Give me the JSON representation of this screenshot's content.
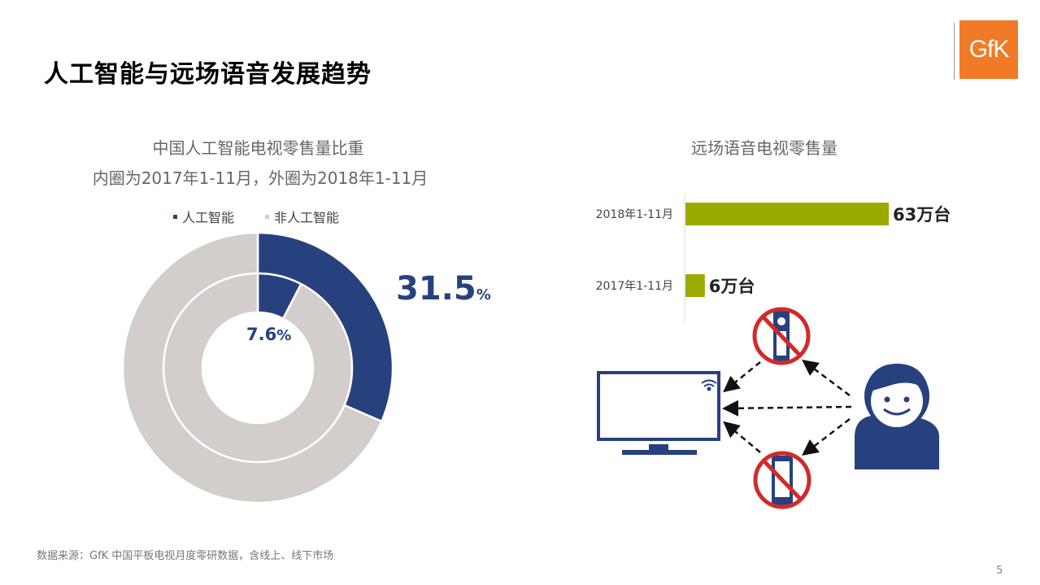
{
  "page": {
    "title": "人工智能与远场语音发展趋势",
    "logo_text": "GfK",
    "source": "数据来源：GfK 中国平板电视月度零研数据，含线上、线下市场",
    "page_number": "5"
  },
  "colors": {
    "ai": "#27417f",
    "non_ai": "#d3cdcb",
    "bar": "#9aab00",
    "logo": "#f07a25",
    "crossout": "#d22a2a"
  },
  "chart_data": [
    {
      "type": "pie",
      "variant": "nested-donut",
      "title": "中国人工智能电视零售量比重",
      "subtitle": "内圈为2017年1-11月，外圈为2018年1-11月",
      "legend": [
        "人工智能",
        "非人工智能"
      ],
      "legend_position": "top",
      "rings": [
        {
          "ring": "inner",
          "values": [
            7.6,
            92.4
          ],
          "label": "7.6",
          "unit": "%"
        },
        {
          "ring": "outer",
          "values": [
            31.5,
            68.5
          ],
          "label": "31.5",
          "unit": "%"
        }
      ]
    },
    {
      "type": "bar",
      "orientation": "horizontal",
      "title": "远场语音电视零售量",
      "categories": [
        "2018年1-11月",
        "2017年1-11月"
      ],
      "values": [
        63,
        6
      ],
      "value_labels": [
        "63万台",
        "6万台"
      ],
      "xlim": [
        0,
        63
      ]
    }
  ],
  "illustration": {
    "icons": [
      "tv-icon",
      "remote-control-icon",
      "smartphone-icon",
      "person-icon",
      "wifi-icon"
    ]
  }
}
